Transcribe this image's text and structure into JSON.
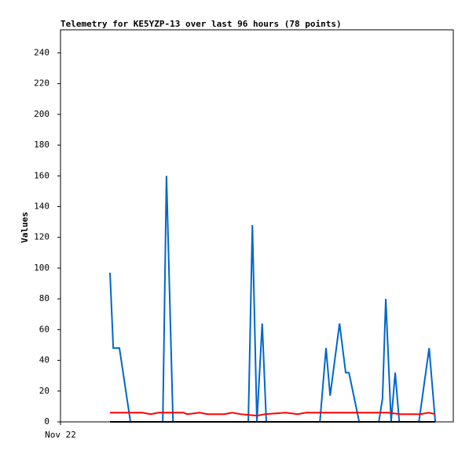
{
  "chart_data": {
    "type": "line",
    "title": "Telemetry for KE5YZP-13 over last 96 hours (78 points)",
    "y_label": "Values",
    "xlim": [
      0,
      96
    ],
    "xticks": [
      {
        "value": 0,
        "label": "Nov 22"
      }
    ],
    "ylim": [
      0,
      255
    ],
    "yticks": [
      0,
      20,
      40,
      60,
      80,
      100,
      120,
      140,
      160,
      180,
      200,
      220,
      240
    ],
    "series": [
      {
        "color": "#0066cc",
        "x": [
          12.1,
          12.9,
          14.4,
          17.1,
          25,
          25.9,
          27.5,
          45.9,
          46.9,
          48,
          49.3,
          50.3,
          63.4,
          64.9,
          65.9,
          68.2,
          69.7,
          70.5,
          73,
          77.8,
          78.7,
          79.5,
          80.8,
          81.8,
          82.8,
          87.6,
          90.1,
          91.6
        ],
        "values": [
          97,
          48,
          48,
          0,
          0,
          160,
          0,
          0,
          128,
          0,
          64,
          0,
          0,
          48,
          17,
          64,
          32,
          32,
          0,
          0,
          15,
          80,
          0,
          32,
          0,
          0,
          48,
          0
        ]
      },
      {
        "color": "#ff0000",
        "x": [
          12.1,
          20,
          22,
          24,
          30,
          31,
          34,
          36,
          40,
          42,
          44,
          48,
          50,
          55,
          58,
          60,
          80,
          83,
          88,
          90,
          91.6
        ],
        "values": [
          6,
          6,
          5,
          6,
          6,
          5,
          6,
          5,
          5,
          6,
          5,
          4,
          5,
          6,
          5,
          6,
          6,
          5,
          5,
          6,
          5
        ]
      },
      {
        "color": "#000000",
        "x": [
          12.1,
          91.6
        ],
        "values": [
          0,
          0
        ]
      }
    ]
  }
}
